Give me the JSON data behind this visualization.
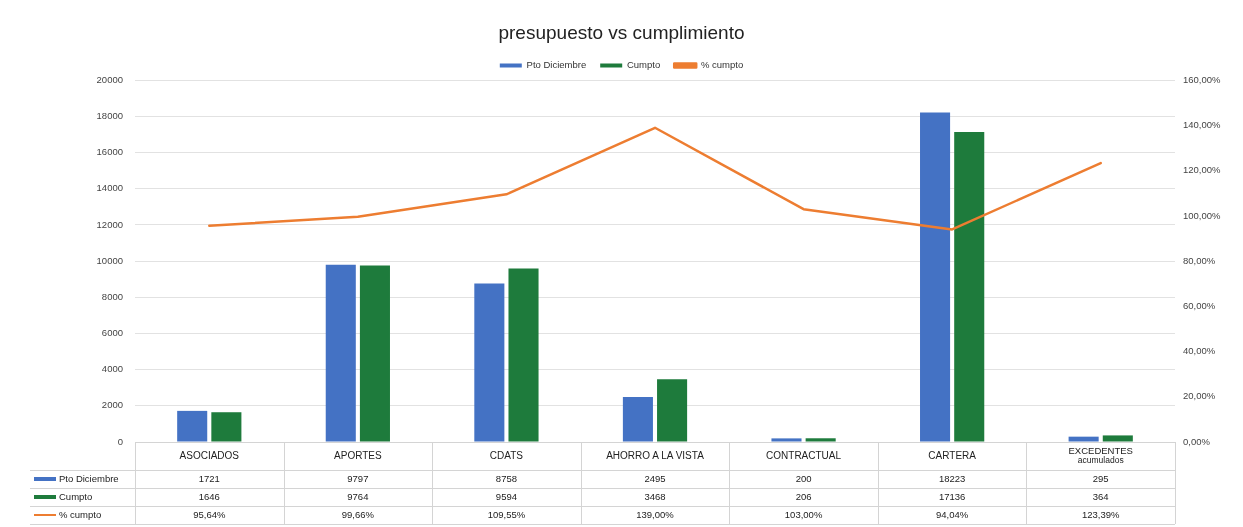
{
  "chart_data": {
    "type": "bar",
    "title": "presupuesto vs cumplimiento",
    "categories": [
      "ASOCIADOS",
      "APORTES",
      "CDATS",
      "AHORRO A LA VISTA",
      "CONTRACTUAL",
      "CARTERA",
      "EXCEDENTES\nacumulados"
    ],
    "series": [
      {
        "name": "Pto Diciembre",
        "color": "#4472c4",
        "values": [
          1721,
          9797,
          8758,
          2495,
          200,
          18223,
          295
        ],
        "value_labels": [
          "1721",
          "9797",
          "8758",
          "2495",
          "200",
          "18223",
          "295"
        ]
      },
      {
        "name": "Cumpto",
        "color": "#1e7b3c",
        "values": [
          1646,
          9764,
          9594,
          3468,
          206,
          17136,
          364
        ],
        "value_labels": [
          "1646",
          "9764",
          "9594",
          "3468",
          "206",
          "17136",
          "364"
        ]
      },
      {
        "name": "% cumpto",
        "type": "line",
        "axis": "y2",
        "color": "#ed7d31",
        "values": [
          95.64,
          99.66,
          109.55,
          139.0,
          103.0,
          94.04,
          123.39
        ],
        "value_labels": [
          "95,64%",
          "99,66%",
          "109,55%",
          "139,00%",
          "103,00%",
          "94,04%",
          "123,39%"
        ]
      }
    ],
    "ylim": [
      0,
      20000
    ],
    "yticks": [
      0,
      2000,
      4000,
      6000,
      8000,
      10000,
      12000,
      14000,
      16000,
      18000,
      20000
    ],
    "y2lim": [
      0,
      160
    ],
    "y2ticks": [
      {
        "value": 0,
        "label": "0,00%"
      },
      {
        "value": 20,
        "label": "20,00%"
      },
      {
        "value": 40,
        "label": "40,00%"
      },
      {
        "value": 60,
        "label": "60,00%"
      },
      {
        "value": 80,
        "label": "80,00%"
      },
      {
        "value": 100,
        "label": "100,00%"
      },
      {
        "value": 120,
        "label": "120,00%"
      },
      {
        "value": 140,
        "label": "140,00%"
      },
      {
        "value": 160,
        "label": "160,00%"
      }
    ],
    "grid": "y",
    "legend": "top",
    "marker": "none",
    "line_style": "solid"
  }
}
